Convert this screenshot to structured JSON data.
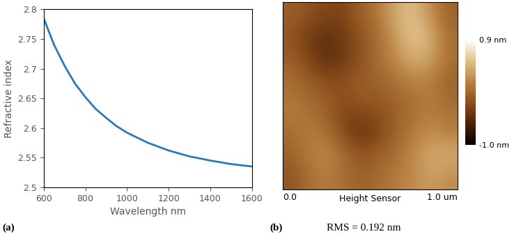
{
  "chart_data": [
    {
      "type": "line",
      "xlabel": "Wavelength nm",
      "ylabel": "Refractive index",
      "annotations": [
        "(a)"
      ],
      "x": [
        600,
        650,
        700,
        750,
        800,
        850,
        900,
        950,
        1000,
        1100,
        1200,
        1300,
        1400,
        1500,
        1600
      ],
      "values": [
        2.785,
        2.74,
        2.705,
        2.675,
        2.652,
        2.632,
        2.617,
        2.603,
        2.592,
        2.575,
        2.562,
        2.552,
        2.545,
        2.539,
        2.535
      ],
      "color": "#2a7ab9",
      "xlim": [
        600,
        1600
      ],
      "xticks": [
        600,
        800,
        1000,
        1200,
        1400,
        1600
      ],
      "ylim": [
        2.5,
        2.8
      ],
      "yticks": [
        2.5,
        2.55,
        2.6,
        2.65,
        2.7,
        2.75,
        2.8
      ],
      "grid": false
    },
    {
      "type": "heatmap",
      "xlabel": "Height Sensor",
      "annotations": [
        "(b)",
        "RMS = 0.192 nm"
      ],
      "xlim": [
        0.0,
        1.0
      ],
      "ylim": [
        0.0,
        1.0
      ],
      "xticks": [
        {
          "value": 0.0,
          "label": "0.0"
        },
        {
          "value": 1.0,
          "label": "1.0 um"
        }
      ],
      "tick_labels": "x",
      "cells": [
        [
          -0.1,
          -0.2,
          -0.3,
          -0.3,
          -0.1,
          0.1,
          0.4,
          0.5,
          0.2,
          -0.1
        ],
        [
          -0.2,
          -0.4,
          -0.5,
          -0.4,
          -0.2,
          0.0,
          0.3,
          0.6,
          0.4,
          0.0
        ],
        [
          -0.1,
          -0.3,
          -0.5,
          -0.4,
          -0.2,
          0.0,
          0.2,
          0.4,
          0.3,
          0.0
        ],
        [
          0.0,
          -0.1,
          -0.2,
          -0.2,
          -0.1,
          -0.1,
          0.0,
          0.1,
          0.1,
          -0.1
        ],
        [
          0.1,
          0.0,
          -0.1,
          -0.3,
          -0.2,
          -0.2,
          -0.1,
          0.0,
          0.1,
          0.0
        ],
        [
          0.0,
          0.1,
          0.0,
          -0.3,
          -0.5,
          -0.3,
          -0.1,
          0.1,
          0.2,
          0.1
        ],
        [
          -0.1,
          0.1,
          0.2,
          0.0,
          -0.2,
          -0.1,
          0.0,
          0.2,
          0.4,
          0.4
        ],
        [
          -0.2,
          0.0,
          0.1,
          0.0,
          -0.1,
          0.0,
          0.1,
          0.2,
          0.3,
          0.2
        ]
      ],
      "colorbar_lim": [
        -1.0,
        0.9
      ],
      "colorbar_ticks": [
        {
          "value": 0.9,
          "label": "0.9 nm"
        },
        {
          "value": -1.0,
          "label": "-1.0 nm"
        }
      ]
    }
  ]
}
